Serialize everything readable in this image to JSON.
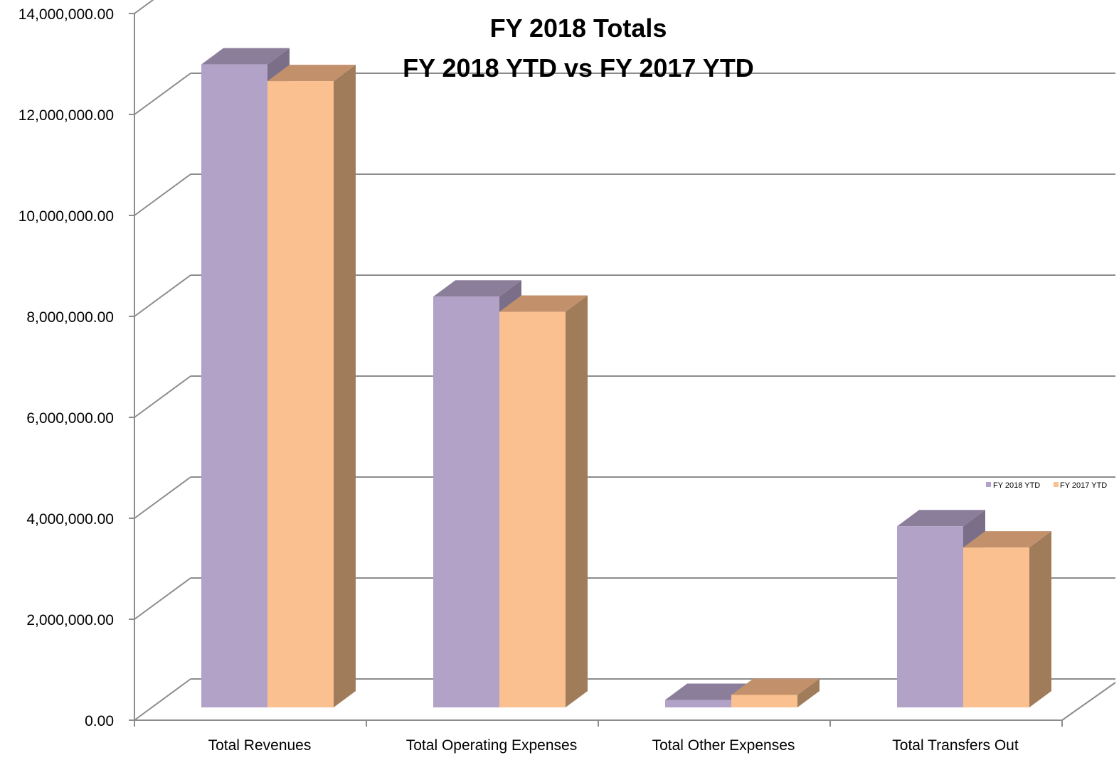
{
  "chart_data": {
    "type": "bar",
    "title": "FY 2018 Totals",
    "subtitle": "FY 2018 YTD vs FY 2017 YTD",
    "xlabel": "",
    "ylabel": "",
    "categories": [
      "Total Revenues",
      "Total Operating Expenses",
      "Total Other Expenses",
      "Total Transfers Out"
    ],
    "series": [
      {
        "name": "FY 2018 YTD",
        "values": [
          12850000,
          8250000,
          260000,
          3700000
        ],
        "color": "#b3a2c7",
        "top_color": "#8b7e9b",
        "side_color": "#7a6e88"
      },
      {
        "name": "FY 2017 YTD",
        "values": [
          12520000,
          7950000,
          360000,
          3280000
        ],
        "color": "#fac090",
        "top_color": "#c2916c",
        "side_color": "#a07c5a"
      }
    ],
    "ylim": [
      0,
      14000000
    ],
    "yticks": [
      0,
      2000000,
      4000000,
      6000000,
      8000000,
      10000000,
      12000000,
      14000000
    ],
    "ytick_labels": [
      "0.00",
      "2,000,000.00",
      "4,000,000.00",
      "6,000,000.00",
      "8,000,000.00",
      "10,000,000.00",
      "12,000,000.00",
      "14,000,000.00"
    ],
    "grid": true,
    "legend": "right",
    "style": "3d-clustered-column"
  }
}
